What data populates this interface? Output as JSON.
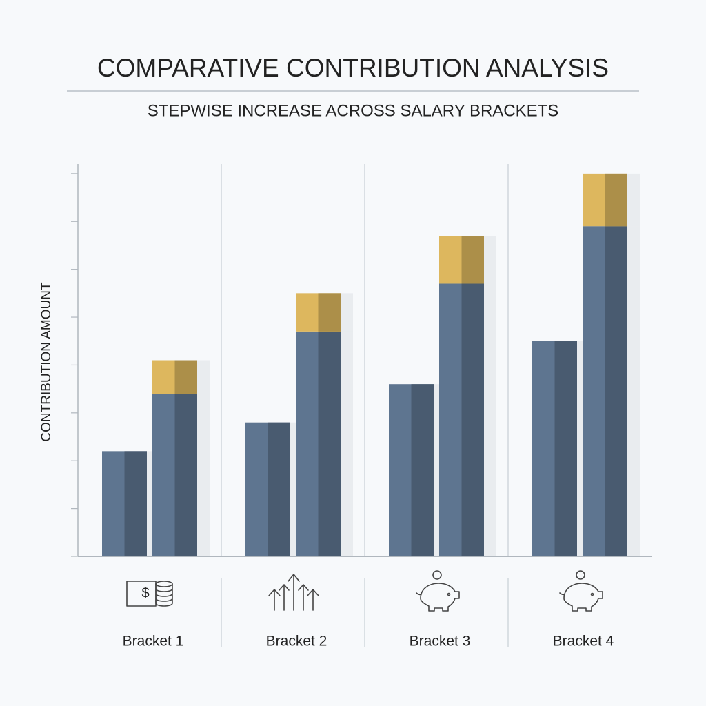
{
  "chart_data": {
    "type": "bar",
    "title": "COMPARATIVE CONTRIBUTION ANALYSIS",
    "subtitle": "STEPWISE INCREASE ACROSS SALARY BRACKETS",
    "y_label": "CONTRIBUTION AMOUNT",
    "categories": [
      "Bracket 1",
      "Bracket 2",
      "Bracket 3",
      "Bracket 4"
    ],
    "series": [
      {
        "color": "#5e7590",
        "stack": "a",
        "values": [
          2.2,
          2.8,
          3.6,
          4.5
        ]
      },
      {
        "color": "#5e7590",
        "stack": "b",
        "values": [
          3.4,
          4.7,
          5.7,
          6.9
        ]
      },
      {
        "color": "#ddb75e",
        "stack": "b",
        "values": [
          0.7,
          0.8,
          1.0,
          1.1
        ]
      }
    ],
    "ylim": [
      0,
      8.2
    ],
    "yticks": [
      0,
      1,
      2,
      3,
      4,
      5,
      6,
      7,
      8
    ]
  }
}
